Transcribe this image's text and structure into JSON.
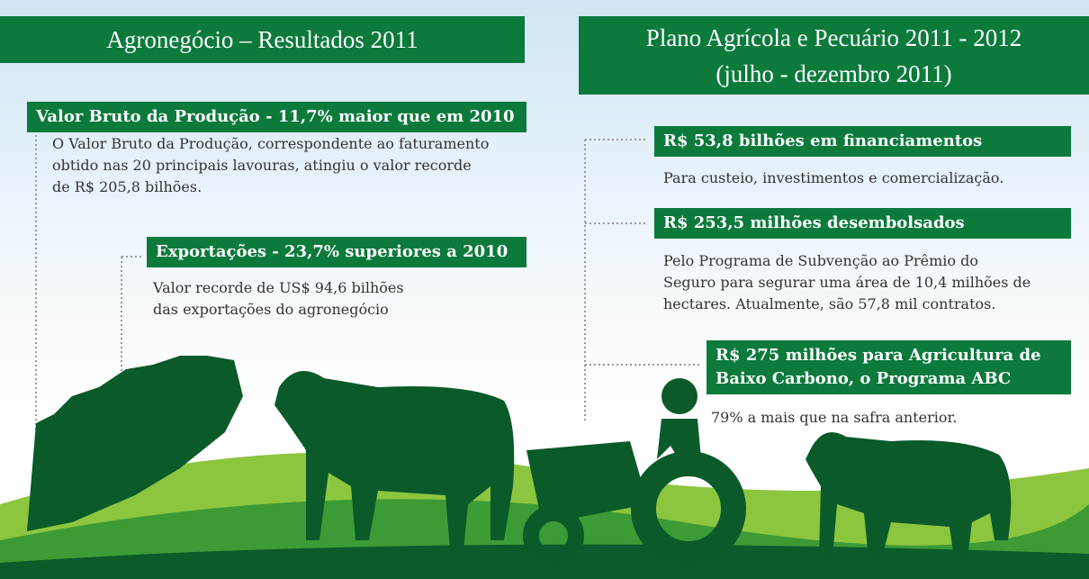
{
  "left": {
    "title": "Agronegócio – Resultados 2011",
    "items": [
      {
        "heading": "Valor Bruto da Produção - 11,7% maior que em 2010",
        "body": [
          "O Valor Bruto da Produção, correspondente ao faturamento",
          "obtido nas 20 principais lavouras, atingiu o valor recorde",
          "de R$ 205,8 bilhões."
        ]
      },
      {
        "heading": "Exportações - 23,7% superiores a 2010",
        "body": [
          "Valor recorde de US$ 94,6 bilhões",
          "das exportações do agronegócio"
        ]
      }
    ]
  },
  "right": {
    "title": [
      "Plano Agrícola e Pecuário 2011 - 2012",
      "(julho - dezembro 2011)"
    ],
    "items": [
      {
        "heading": [
          "R$ 53,8 bilhões em financiamentos"
        ],
        "body": [
          "Para custeio, investimentos e comercialização."
        ]
      },
      {
        "heading": [
          "R$ 253,5 milhões desembolsados"
        ],
        "body": [
          "Pelo Programa de Subvenção ao Prêmio do",
          "Seguro para segurar uma área de 10,4 milhões de",
          "hectares. Atualmente, são 57,8 mil contratos."
        ]
      },
      {
        "heading": [
          "R$ 275 milhões para Agricultura de",
          "Baixo Carbono, o Programa ABC"
        ],
        "body": [
          "79% a mais que na safra anterior."
        ]
      }
    ]
  }
}
